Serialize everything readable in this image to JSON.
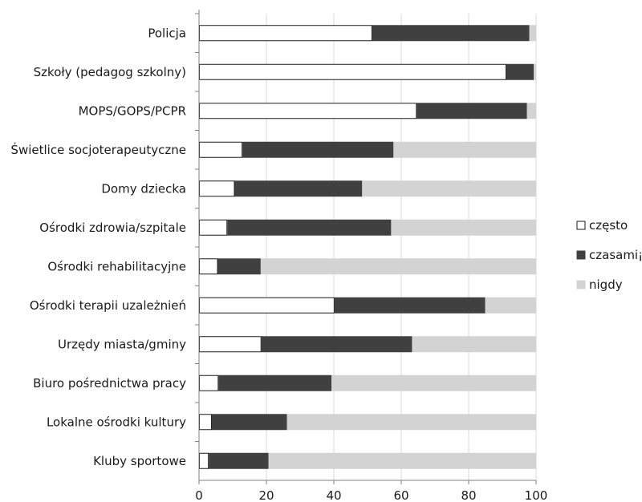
{
  "chart_data": {
    "type": "bar",
    "orientation": "horizontal",
    "stacked": true,
    "title": "",
    "xlabel": "",
    "ylabel": "",
    "xlim": [
      0,
      100
    ],
    "x_ticks": [
      "0",
      "20",
      "40",
      "60",
      "80",
      "100"
    ],
    "grid": true,
    "legend_position": "right",
    "categories": [
      "Policja",
      "Szkoły (pedagog szkolny)",
      "MOPS/GOPS/PCPR",
      "Świetlice socjoterapeutyczne",
      "Domy dziecka",
      "Ośrodki zdrowia/szpitale",
      "Ośrodki rehabilitacyjne",
      "Ośrodki terapii uzależnień",
      "Urzędy miasta/gminy",
      "Biuro pośrednictwa pracy",
      "Lokalne ośrodki kultury",
      "Kluby sportowe"
    ],
    "series": [
      {
        "name": "często",
        "color": "#ffffff",
        "stroke": "#1a1a1a",
        "values": [
          51.4,
          91.2,
          64.6,
          12.9,
          10.6,
          8.4,
          5.6,
          40.2,
          18.5,
          5.8,
          3.8,
          2.9
        ]
      },
      {
        "name": "czasami¡",
        "color": "#404040",
        "stroke": "#404040",
        "values": [
          46.6,
          8.1,
          32.7,
          44.8,
          37.8,
          48.6,
          12.7,
          44.7,
          44.7,
          33.5,
          22.3,
          17.7
        ]
      },
      {
        "name": "nigdy",
        "color": "#d3d3d3",
        "stroke": "#d3d3d3",
        "values": [
          2.0,
          0.7,
          2.7,
          42.3,
          51.6,
          43.0,
          81.7,
          15.1,
          36.8,
          60.7,
          73.9,
          79.4
        ]
      }
    ]
  }
}
